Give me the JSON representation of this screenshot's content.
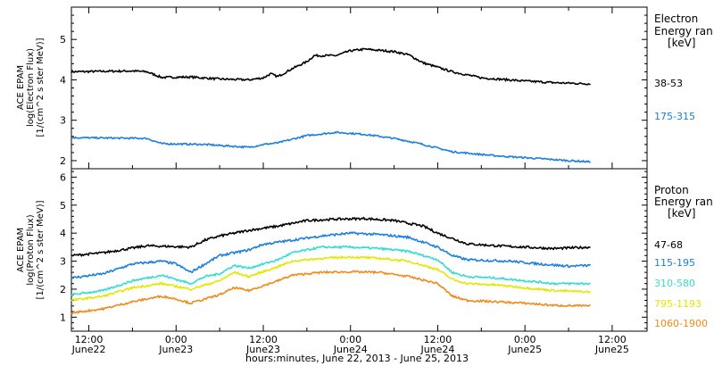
{
  "chart_data": {
    "type": "line",
    "title": "",
    "xlabel": "hours:minutes, June 22, 2013 - June 25, 2013",
    "x_tick_labels": [
      {
        "time": "12:00",
        "date": "June22",
        "hours": 12
      },
      {
        "time": "0:00",
        "date": "June23",
        "hours": 24
      },
      {
        "time": "12:00",
        "date": "June23",
        "hours": 36
      },
      {
        "time": "0:00",
        "date": "June24",
        "hours": 48
      },
      {
        "time": "12:00",
        "date": "June24",
        "hours": 60
      },
      {
        "time": "0:00",
        "date": "June25",
        "hours": 72
      },
      {
        "time": "12:00",
        "date": "June25",
        "hours": 84
      }
    ],
    "xlim_hours": [
      9.6,
      88.8
    ],
    "x_data_end_hours": 81,
    "panels": [
      {
        "id": "electron",
        "ylabel_lines": [
          "ACE EPAM",
          "log(Electron Flux)",
          "[1/(cm^2 s ster MeV)]"
        ],
        "ylim": [
          1.8,
          5.8
        ],
        "yticks": [
          2,
          3,
          4,
          5
        ],
        "legend_title": [
          "Electron",
          "Energy ran",
          "[keV]"
        ],
        "series": [
          {
            "name": "38-53",
            "color": "#000000",
            "noise": 0.025,
            "points": [
              [
                9.6,
                4.2
              ],
              [
                18,
                4.22
              ],
              [
                20,
                4.2
              ],
              [
                22,
                4.06
              ],
              [
                26,
                4.07
              ],
              [
                30,
                4.02
              ],
              [
                34,
                4.0
              ],
              [
                36,
                4.05
              ],
              [
                37,
                4.15
              ],
              [
                38,
                4.08
              ],
              [
                40,
                4.28
              ],
              [
                42,
                4.45
              ],
              [
                43,
                4.6
              ],
              [
                46,
                4.6
              ],
              [
                48,
                4.72
              ],
              [
                50,
                4.76
              ],
              [
                54,
                4.7
              ],
              [
                56,
                4.62
              ],
              [
                58,
                4.42
              ],
              [
                62,
                4.2
              ],
              [
                66,
                4.05
              ],
              [
                72,
                3.97
              ],
              [
                76,
                3.93
              ],
              [
                81,
                3.9
              ]
            ]
          },
          {
            "name": "175-315",
            "color": "#1a7fe0",
            "noise": 0.02,
            "points": [
              [
                9.6,
                2.57
              ],
              [
                20,
                2.55
              ],
              [
                22,
                2.42
              ],
              [
                28,
                2.4
              ],
              [
                34,
                2.33
              ],
              [
                36,
                2.4
              ],
              [
                38,
                2.44
              ],
              [
                42,
                2.62
              ],
              [
                46,
                2.7
              ],
              [
                50,
                2.65
              ],
              [
                54,
                2.55
              ],
              [
                56,
                2.48
              ],
              [
                58,
                2.4
              ],
              [
                62,
                2.22
              ],
              [
                68,
                2.12
              ],
              [
                74,
                2.05
              ],
              [
                78,
                2.0
              ],
              [
                81,
                1.97
              ]
            ]
          }
        ]
      },
      {
        "id": "proton",
        "ylabel_lines": [
          "ACE EPAM",
          "log(Proton Flux)",
          "[1/(cm^2 s ster MeV)]"
        ],
        "ylim": [
          0.5,
          6.3
        ],
        "yticks": [
          1,
          2,
          3,
          4,
          5,
          6
        ],
        "legend_title": [
          "Proton",
          "Energy ran",
          "[keV]"
        ],
        "series": [
          {
            "name": "47-68",
            "color": "#000000",
            "noise": 0.04,
            "points": [
              [
                9.6,
                3.2
              ],
              [
                14,
                3.3
              ],
              [
                20,
                3.55
              ],
              [
                26,
                3.5
              ],
              [
                28,
                3.75
              ],
              [
                30,
                3.9
              ],
              [
                34,
                4.1
              ],
              [
                38,
                4.25
              ],
              [
                42,
                4.45
              ],
              [
                46,
                4.5
              ],
              [
                50,
                4.52
              ],
              [
                54,
                4.45
              ],
              [
                58,
                4.25
              ],
              [
                60,
                4.0
              ],
              [
                64,
                3.62
              ],
              [
                68,
                3.55
              ],
              [
                72,
                3.5
              ],
              [
                76,
                3.45
              ],
              [
                81,
                3.5
              ]
            ]
          },
          {
            "name": "115-195",
            "color": "#1a7fe0",
            "noise": 0.04,
            "points": [
              [
                9.6,
                2.4
              ],
              [
                14,
                2.55
              ],
              [
                18,
                2.9
              ],
              [
                22,
                3.0
              ],
              [
                24,
                2.9
              ],
              [
                26,
                2.6
              ],
              [
                28,
                2.9
              ],
              [
                30,
                3.2
              ],
              [
                34,
                3.4
              ],
              [
                36,
                3.6
              ],
              [
                40,
                3.75
              ],
              [
                44,
                3.9
              ],
              [
                48,
                4.0
              ],
              [
                52,
                3.95
              ],
              [
                56,
                3.85
              ],
              [
                60,
                3.5
              ],
              [
                62,
                3.2
              ],
              [
                64,
                3.05
              ],
              [
                70,
                3.0
              ],
              [
                74,
                2.9
              ],
              [
                78,
                2.82
              ],
              [
                81,
                2.85
              ]
            ]
          },
          {
            "name": "310-580",
            "color": "#33dcd0",
            "noise": 0.035,
            "points": [
              [
                9.6,
                1.8
              ],
              [
                14,
                1.95
              ],
              [
                18,
                2.3
              ],
              [
                22,
                2.5
              ],
              [
                24,
                2.35
              ],
              [
                26,
                2.2
              ],
              [
                28,
                2.45
              ],
              [
                30,
                2.55
              ],
              [
                32,
                2.85
              ],
              [
                34,
                2.75
              ],
              [
                38,
                3.05
              ],
              [
                40,
                3.3
              ],
              [
                44,
                3.5
              ],
              [
                48,
                3.5
              ],
              [
                52,
                3.45
              ],
              [
                56,
                3.35
              ],
              [
                60,
                3.05
              ],
              [
                62,
                2.6
              ],
              [
                64,
                2.45
              ],
              [
                68,
                2.4
              ],
              [
                72,
                2.3
              ],
              [
                76,
                2.2
              ],
              [
                81,
                2.2
              ]
            ]
          },
          {
            "name": "795-1193",
            "color": "#e4e600",
            "noise": 0.035,
            "points": [
              [
                9.6,
                1.6
              ],
              [
                14,
                1.75
              ],
              [
                18,
                2.05
              ],
              [
                22,
                2.2
              ],
              [
                24,
                2.1
              ],
              [
                26,
                2.0
              ],
              [
                28,
                2.15
              ],
              [
                30,
                2.3
              ],
              [
                32,
                2.6
              ],
              [
                34,
                2.45
              ],
              [
                38,
                2.8
              ],
              [
                40,
                3.0
              ],
              [
                44,
                3.1
              ],
              [
                48,
                3.15
              ],
              [
                52,
                3.1
              ],
              [
                56,
                3.0
              ],
              [
                60,
                2.7
              ],
              [
                62,
                2.35
              ],
              [
                64,
                2.2
              ],
              [
                68,
                2.15
              ],
              [
                72,
                2.05
              ],
              [
                76,
                1.95
              ],
              [
                81,
                1.9
              ]
            ]
          },
          {
            "name": "1060-1900",
            "color": "#f08a1a",
            "noise": 0.035,
            "points": [
              [
                9.6,
                1.15
              ],
              [
                14,
                1.3
              ],
              [
                18,
                1.55
              ],
              [
                22,
                1.75
              ],
              [
                24,
                1.65
              ],
              [
                26,
                1.5
              ],
              [
                28,
                1.65
              ],
              [
                30,
                1.8
              ],
              [
                32,
                2.05
              ],
              [
                34,
                1.95
              ],
              [
                38,
                2.3
              ],
              [
                40,
                2.5
              ],
              [
                44,
                2.6
              ],
              [
                48,
                2.62
              ],
              [
                52,
                2.6
              ],
              [
                56,
                2.45
              ],
              [
                60,
                2.2
              ],
              [
                62,
                1.75
              ],
              [
                64,
                1.6
              ],
              [
                68,
                1.55
              ],
              [
                72,
                1.5
              ],
              [
                76,
                1.42
              ],
              [
                81,
                1.4
              ]
            ]
          }
        ]
      }
    ]
  }
}
